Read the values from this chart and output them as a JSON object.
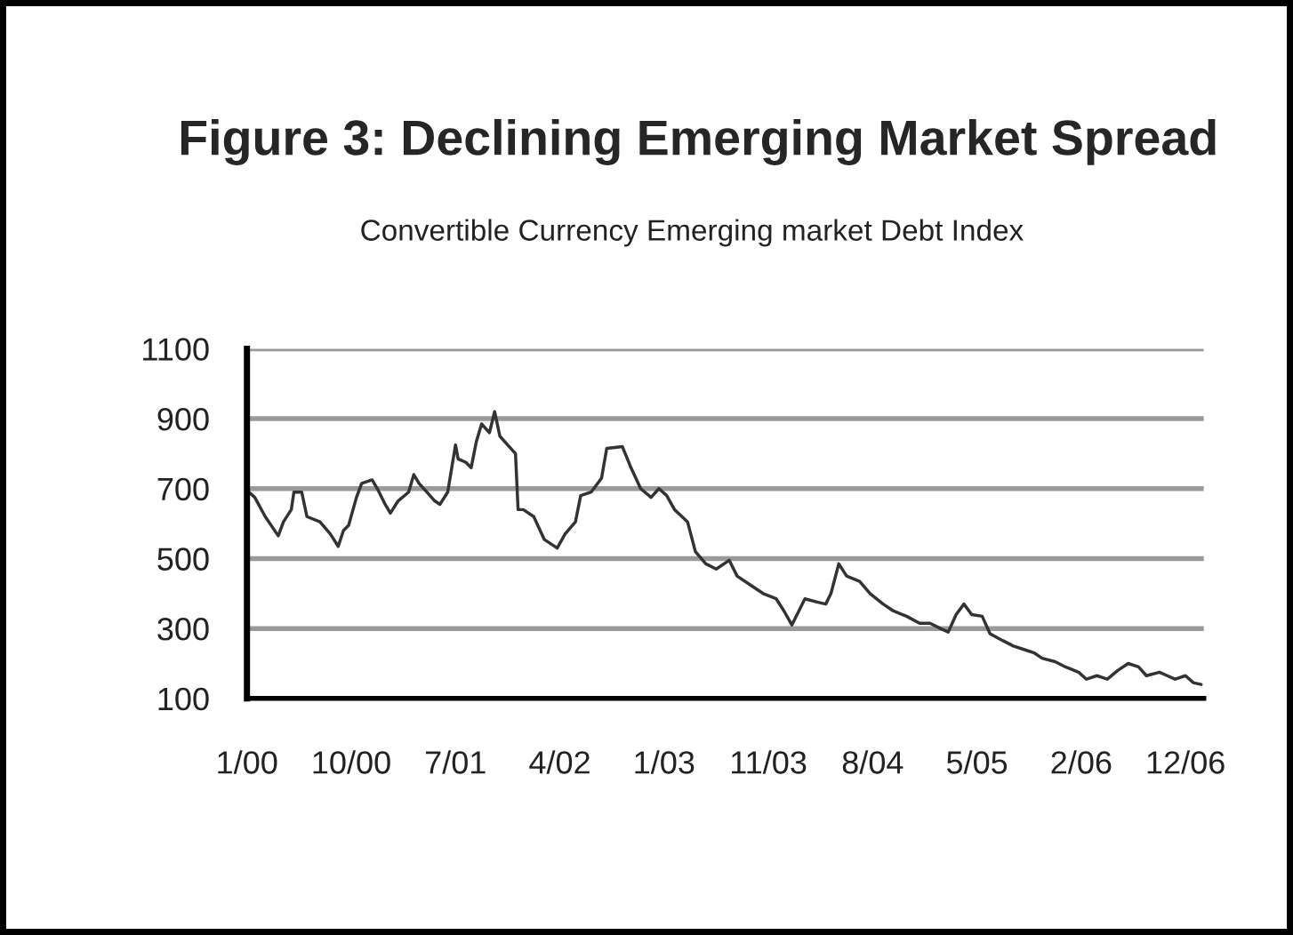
{
  "chart_data": {
    "type": "line",
    "title": "Figure 3: Declining Emerging Market Spread",
    "subtitle": "Convertible Currency Emerging market Debt Index",
    "x": [
      "2000-01-07",
      "2000-01-28",
      "2000-02-25",
      "2000-03-31",
      "2000-04-14",
      "2000-05-05",
      "2000-05-12",
      "2000-05-26",
      "2000-06-02",
      "2000-06-16",
      "2000-07-21",
      "2000-08-18",
      "2000-09-08",
      "2000-09-22",
      "2000-10-06",
      "2000-10-27",
      "2000-11-10",
      "2000-12-08",
      "2000-12-22",
      "2001-01-12",
      "2001-01-26",
      "2001-02-16",
      "2001-03-16",
      "2001-03-30",
      "2001-04-13",
      "2001-05-04",
      "2001-05-25",
      "2001-06-08",
      "2001-06-29",
      "2001-07-20",
      "2001-07-27",
      "2001-08-17",
      "2001-08-31",
      "2001-09-14",
      "2001-09-28",
      "2001-10-19",
      "2001-11-02",
      "2001-11-16",
      "2001-12-07",
      "2001-12-28",
      "2002-01-04",
      "2002-01-18",
      "2002-02-15",
      "2002-03-15",
      "2002-04-19",
      "2002-05-10",
      "2002-06-07",
      "2002-06-21",
      "2002-07-19",
      "2002-08-16",
      "2002-08-30",
      "2002-10-11",
      "2002-11-01",
      "2002-11-29",
      "2002-12-27",
      "2003-01-17",
      "2003-02-07",
      "2003-02-28",
      "2003-04-04",
      "2003-04-25",
      "2003-05-23",
      "2003-06-20",
      "2003-07-25",
      "2003-08-15",
      "2003-09-19",
      "2003-10-24",
      "2003-11-28",
      "2003-12-19",
      "2004-01-09",
      "2004-01-23",
      "2004-02-13",
      "2004-03-19",
      "2004-04-09",
      "2004-04-23",
      "2004-05-14",
      "2004-06-04",
      "2004-07-09",
      "2004-08-06",
      "2004-09-10",
      "2004-10-08",
      "2004-11-12",
      "2004-12-17",
      "2005-01-14",
      "2005-02-11",
      "2005-03-04",
      "2005-03-25",
      "2005-04-15",
      "2005-05-06",
      "2005-06-03",
      "2005-06-24",
      "2005-07-29",
      "2005-08-26",
      "2005-09-23",
      "2005-10-21",
      "2005-11-11",
      "2005-12-16",
      "2006-01-13",
      "2006-02-17",
      "2006-03-10",
      "2006-04-07",
      "2006-05-05",
      "2006-06-02",
      "2006-06-30",
      "2006-07-28",
      "2006-08-18",
      "2006-09-22",
      "2006-10-13",
      "2006-11-03",
      "2006-12-01",
      "2006-12-22",
      "2007-01-12"
    ],
    "series": [
      {
        "color": "#333333",
        "values": [
          695,
          675,
          620,
          565,
          605,
          640,
          690,
          690,
          690,
          620,
          605,
          570,
          535,
          580,
          595,
          675,
          715,
          725,
          700,
          655,
          630,
          665,
          690,
          740,
          715,
          690,
          665,
          655,
          690,
          825,
          785,
          775,
          760,
          835,
          885,
          860,
          920,
          850,
          825,
          800,
          640,
          640,
          620,
          555,
          530,
          570,
          605,
          680,
          690,
          730,
          815,
          820,
          765,
          700,
          675,
          700,
          680,
          640,
          605,
          520,
          485,
          470,
          495,
          450,
          425,
          400,
          385,
          350,
          310,
          340,
          385,
          375,
          370,
          400,
          485,
          450,
          435,
          400,
          370,
          350,
          335,
          315,
          315,
          300,
          290,
          340,
          370,
          340,
          335,
          285,
          265,
          250,
          240,
          230,
          215,
          205,
          190,
          175,
          155,
          165,
          155,
          180,
          200,
          190,
          165,
          175,
          165,
          155,
          165,
          145,
          140
        ]
      }
    ],
    "xlim": [
      "2000-01-07",
      "2007-01-19"
    ],
    "xticks": [
      {
        "value": "2000-01-07",
        "label": "1/00"
      },
      {
        "value": "2000-10-13",
        "label": "10/00"
      },
      {
        "value": "2001-07-20",
        "label": "7/01"
      },
      {
        "value": "2002-04-26",
        "label": "4/02"
      },
      {
        "value": "2003-01-31",
        "label": "1/03"
      },
      {
        "value": "2003-11-07",
        "label": "11/03"
      },
      {
        "value": "2004-08-13",
        "label": "8/04"
      },
      {
        "value": "2005-05-20",
        "label": "5/05"
      },
      {
        "value": "2006-02-24",
        "label": "2/06"
      },
      {
        "value": "2006-12-01",
        "label": "12/06"
      }
    ],
    "ylim": [
      100,
      1100
    ],
    "yticks": [
      100,
      300,
      500,
      700,
      900,
      1100
    ],
    "grid": "y"
  }
}
